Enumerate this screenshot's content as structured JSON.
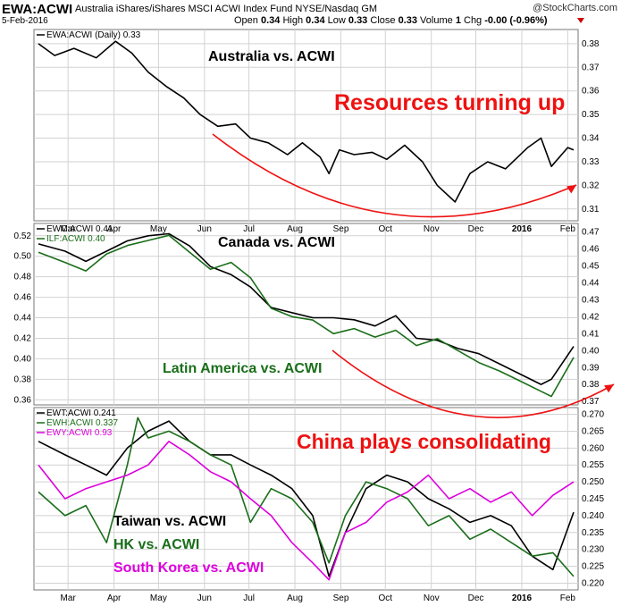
{
  "header": {
    "symbol": "EWA:ACWI",
    "description": "Australia iShares/iShares MSCI ACWI Index Fund NYSE/Nasdaq GM",
    "date": "5-Feb-2016",
    "ohlc_prefix_open": "Open",
    "open": "0.34",
    "ohlc_prefix_high": "High",
    "high": "0.34",
    "ohlc_prefix_low": "Low",
    "low": "0.33",
    "ohlc_prefix_close": "Close",
    "close": "0.33",
    "ohlc_prefix_volume": "Volume",
    "volume": "1",
    "chg_label": "Chg",
    "chg": "-0.00 (-0.96%)",
    "logo": "@StockCharts.com",
    "chg_arrow_icon": "down-triangle-icon",
    "chg_arrow_color": "#cc0000"
  },
  "chart_data": [
    {
      "type": "line",
      "legend": [
        {
          "text": "EWA:ACWI (Daily) 0.33",
          "color": "#000000"
        }
      ],
      "annotations": [
        {
          "text": "Australia vs. ACWI",
          "color": "#000000"
        },
        {
          "text": "Resources turning up",
          "color": "#ee1111"
        }
      ],
      "trend_arrow_color": "#ee1111",
      "x_ticks": [
        "Mar",
        "Apr",
        "May",
        "Jun",
        "Jul",
        "Aug",
        "Sep",
        "Oct",
        "Nov",
        "Dec",
        "2016",
        "Feb"
      ],
      "y_ticks": [
        0.31,
        0.32,
        0.33,
        0.34,
        0.35,
        0.36,
        0.37,
        0.38
      ],
      "ylim": [
        0.305,
        0.386
      ],
      "series": [
        {
          "name": "EWA:ACWI",
          "color": "#000000",
          "x": [
            "2015-02-09",
            "2015-02-20",
            "2015-03-05",
            "2015-03-20",
            "2015-04-02",
            "2015-04-13",
            "2015-04-24",
            "2015-05-06",
            "2015-05-18",
            "2015-05-29",
            "2015-06-10",
            "2015-06-22",
            "2015-07-02",
            "2015-07-14",
            "2015-07-27",
            "2015-08-06",
            "2015-08-18",
            "2015-08-24",
            "2015-08-31",
            "2015-09-10",
            "2015-09-22",
            "2015-10-02",
            "2015-10-14",
            "2015-10-26",
            "2015-11-05",
            "2015-11-17",
            "2015-11-27",
            "2015-12-09",
            "2015-12-21",
            "2016-01-05",
            "2016-01-14",
            "2016-01-21",
            "2016-02-01",
            "2016-02-05"
          ],
          "y": [
            0.38,
            0.375,
            0.378,
            0.374,
            0.381,
            0.376,
            0.368,
            0.362,
            0.357,
            0.35,
            0.345,
            0.346,
            0.34,
            0.338,
            0.333,
            0.338,
            0.332,
            0.325,
            0.335,
            0.333,
            0.334,
            0.331,
            0.337,
            0.33,
            0.32,
            0.313,
            0.325,
            0.33,
            0.327,
            0.336,
            0.34,
            0.328,
            0.336,
            0.335
          ]
        }
      ]
    },
    {
      "type": "line",
      "legend": [
        {
          "text": "EWC:ACWI 0.41",
          "color": "#000000"
        },
        {
          "text": "ILF:ACWI 0.40",
          "color": "#1a6e1a"
        }
      ],
      "annotations": [
        {
          "text": "Canada vs. ACWI",
          "color": "#000000"
        },
        {
          "text": "Latin America vs. ACWI",
          "color": "#1a6e1a"
        }
      ],
      "trend_arrow_color": "#ee1111",
      "left_axis": {
        "ticks": [
          0.36,
          0.38,
          0.4,
          0.42,
          0.44,
          0.46,
          0.48,
          0.5,
          0.52
        ],
        "ylim": [
          0.355,
          0.532
        ],
        "series": "EWC:ACWI"
      },
      "right_axis": {
        "ticks": [
          0.37,
          0.38,
          0.39,
          0.4,
          0.41,
          0.42,
          0.43,
          0.44,
          0.45,
          0.46,
          0.47
        ],
        "ylim": [
          0.368,
          0.475
        ],
        "series": "ILF:ACWI"
      },
      "series": [
        {
          "name": "EWC:ACWI",
          "color": "#000000",
          "axis": "left",
          "x": [
            "2015-02-09",
            "2015-02-27",
            "2015-03-13",
            "2015-03-27",
            "2015-04-10",
            "2015-04-24",
            "2015-05-08",
            "2015-05-22",
            "2015-06-05",
            "2015-06-19",
            "2015-07-02",
            "2015-07-16",
            "2015-07-30",
            "2015-08-13",
            "2015-08-27",
            "2015-09-10",
            "2015-09-24",
            "2015-10-08",
            "2015-10-22",
            "2015-11-05",
            "2015-11-19",
            "2015-12-03",
            "2015-12-17",
            "2015-12-31",
            "2016-01-14",
            "2016-01-21",
            "2016-02-05"
          ],
          "y": [
            0.512,
            0.505,
            0.495,
            0.505,
            0.515,
            0.52,
            0.522,
            0.51,
            0.49,
            0.482,
            0.47,
            0.45,
            0.445,
            0.44,
            0.44,
            0.438,
            0.432,
            0.442,
            0.42,
            0.418,
            0.41,
            0.405,
            0.395,
            0.385,
            0.375,
            0.38,
            0.412
          ]
        },
        {
          "name": "ILF:ACWI",
          "color": "#1a6e1a",
          "axis": "right",
          "x": [
            "2015-02-09",
            "2015-02-27",
            "2015-03-13",
            "2015-03-27",
            "2015-04-10",
            "2015-04-24",
            "2015-05-08",
            "2015-05-22",
            "2015-06-05",
            "2015-06-19",
            "2015-07-02",
            "2015-07-16",
            "2015-07-30",
            "2015-08-13",
            "2015-08-27",
            "2015-09-10",
            "2015-09-24",
            "2015-10-08",
            "2015-10-22",
            "2015-11-05",
            "2015-11-19",
            "2015-12-03",
            "2015-12-17",
            "2015-12-31",
            "2016-01-14",
            "2016-01-21",
            "2016-02-05"
          ],
          "y": [
            0.458,
            0.452,
            0.447,
            0.457,
            0.462,
            0.465,
            0.468,
            0.458,
            0.448,
            0.452,
            0.443,
            0.425,
            0.42,
            0.418,
            0.41,
            0.413,
            0.408,
            0.412,
            0.403,
            0.407,
            0.4,
            0.393,
            0.388,
            0.382,
            0.376,
            0.373,
            0.396
          ]
        }
      ]
    },
    {
      "type": "line",
      "legend": [
        {
          "text": "EWT:ACWI 0.241",
          "color": "#000000"
        },
        {
          "text": "EWH:ACWI 0.337",
          "color": "#1a6e1a"
        },
        {
          "text": "EWY:ACWI 0.93",
          "color": "#dd00dd"
        }
      ],
      "annotations": [
        {
          "text": "China plays consolidating",
          "color": "#ee1111"
        },
        {
          "text": "Taiwan vs. ACWI",
          "color": "#000000"
        },
        {
          "text": "HK vs. ACWI",
          "color": "#1a6e1a"
        },
        {
          "text": "South Korea vs. ACWI",
          "color": "#dd00dd"
        }
      ],
      "x_ticks": [
        "Mar",
        "Apr",
        "May",
        "Jun",
        "Jul",
        "Aug",
        "Sep",
        "Oct",
        "Nov",
        "Dec",
        "2016",
        "Feb"
      ],
      "y_ticks": [
        0.22,
        0.225,
        0.23,
        0.235,
        0.24,
        0.245,
        0.25,
        0.255,
        0.26,
        0.265,
        0.27
      ],
      "ylim": [
        0.218,
        0.272
      ],
      "series": [
        {
          "name": "EWT:ACWI",
          "color": "#000000",
          "x": [
            "2015-02-09",
            "2015-02-27",
            "2015-03-13",
            "2015-03-27",
            "2015-04-10",
            "2015-04-24",
            "2015-05-08",
            "2015-05-22",
            "2015-06-05",
            "2015-06-19",
            "2015-07-02",
            "2015-07-16",
            "2015-07-30",
            "2015-08-13",
            "2015-08-24",
            "2015-09-04",
            "2015-09-18",
            "2015-10-02",
            "2015-10-16",
            "2015-10-30",
            "2015-11-13",
            "2015-11-27",
            "2015-12-11",
            "2015-12-25",
            "2016-01-08",
            "2016-01-22",
            "2016-02-05"
          ],
          "y": [
            0.262,
            0.258,
            0.255,
            0.252,
            0.26,
            0.265,
            0.268,
            0.262,
            0.258,
            0.258,
            0.255,
            0.252,
            0.248,
            0.24,
            0.222,
            0.235,
            0.248,
            0.252,
            0.25,
            0.245,
            0.242,
            0.238,
            0.24,
            0.237,
            0.228,
            0.224,
            0.241
          ]
        },
        {
          "name": "EWH:ACWI",
          "color": "#1a6e1a",
          "x": [
            "2015-02-09",
            "2015-02-27",
            "2015-03-13",
            "2015-03-27",
            "2015-04-10",
            "2015-04-17",
            "2015-04-24",
            "2015-05-08",
            "2015-05-22",
            "2015-06-05",
            "2015-06-19",
            "2015-07-02",
            "2015-07-16",
            "2015-07-30",
            "2015-08-13",
            "2015-08-24",
            "2015-09-04",
            "2015-09-18",
            "2015-10-02",
            "2015-10-16",
            "2015-10-30",
            "2015-11-13",
            "2015-11-27",
            "2015-12-11",
            "2015-12-25",
            "2016-01-08",
            "2016-01-22",
            "2016-02-05"
          ],
          "y": [
            0.247,
            0.24,
            0.243,
            0.232,
            0.255,
            0.269,
            0.263,
            0.265,
            0.262,
            0.258,
            0.255,
            0.238,
            0.248,
            0.245,
            0.238,
            0.226,
            0.24,
            0.25,
            0.248,
            0.245,
            0.237,
            0.24,
            0.233,
            0.236,
            0.232,
            0.228,
            0.229,
            0.222
          ]
        },
        {
          "name": "EWY:ACWI",
          "color": "#dd00dd",
          "x": [
            "2015-02-09",
            "2015-02-27",
            "2015-03-13",
            "2015-03-27",
            "2015-04-10",
            "2015-04-24",
            "2015-05-08",
            "2015-05-22",
            "2015-06-05",
            "2015-06-19",
            "2015-07-02",
            "2015-07-16",
            "2015-07-30",
            "2015-08-13",
            "2015-08-24",
            "2015-09-04",
            "2015-09-18",
            "2015-10-02",
            "2015-10-16",
            "2015-10-30",
            "2015-11-13",
            "2015-11-27",
            "2015-12-11",
            "2015-12-25",
            "2016-01-08",
            "2016-01-22",
            "2016-02-05"
          ],
          "y": [
            0.255,
            0.245,
            0.248,
            0.25,
            0.252,
            0.255,
            0.262,
            0.258,
            0.253,
            0.25,
            0.245,
            0.24,
            0.232,
            0.226,
            0.221,
            0.235,
            0.238,
            0.244,
            0.247,
            0.252,
            0.245,
            0.248,
            0.244,
            0.247,
            0.24,
            0.246,
            0.25
          ]
        }
      ]
    }
  ]
}
